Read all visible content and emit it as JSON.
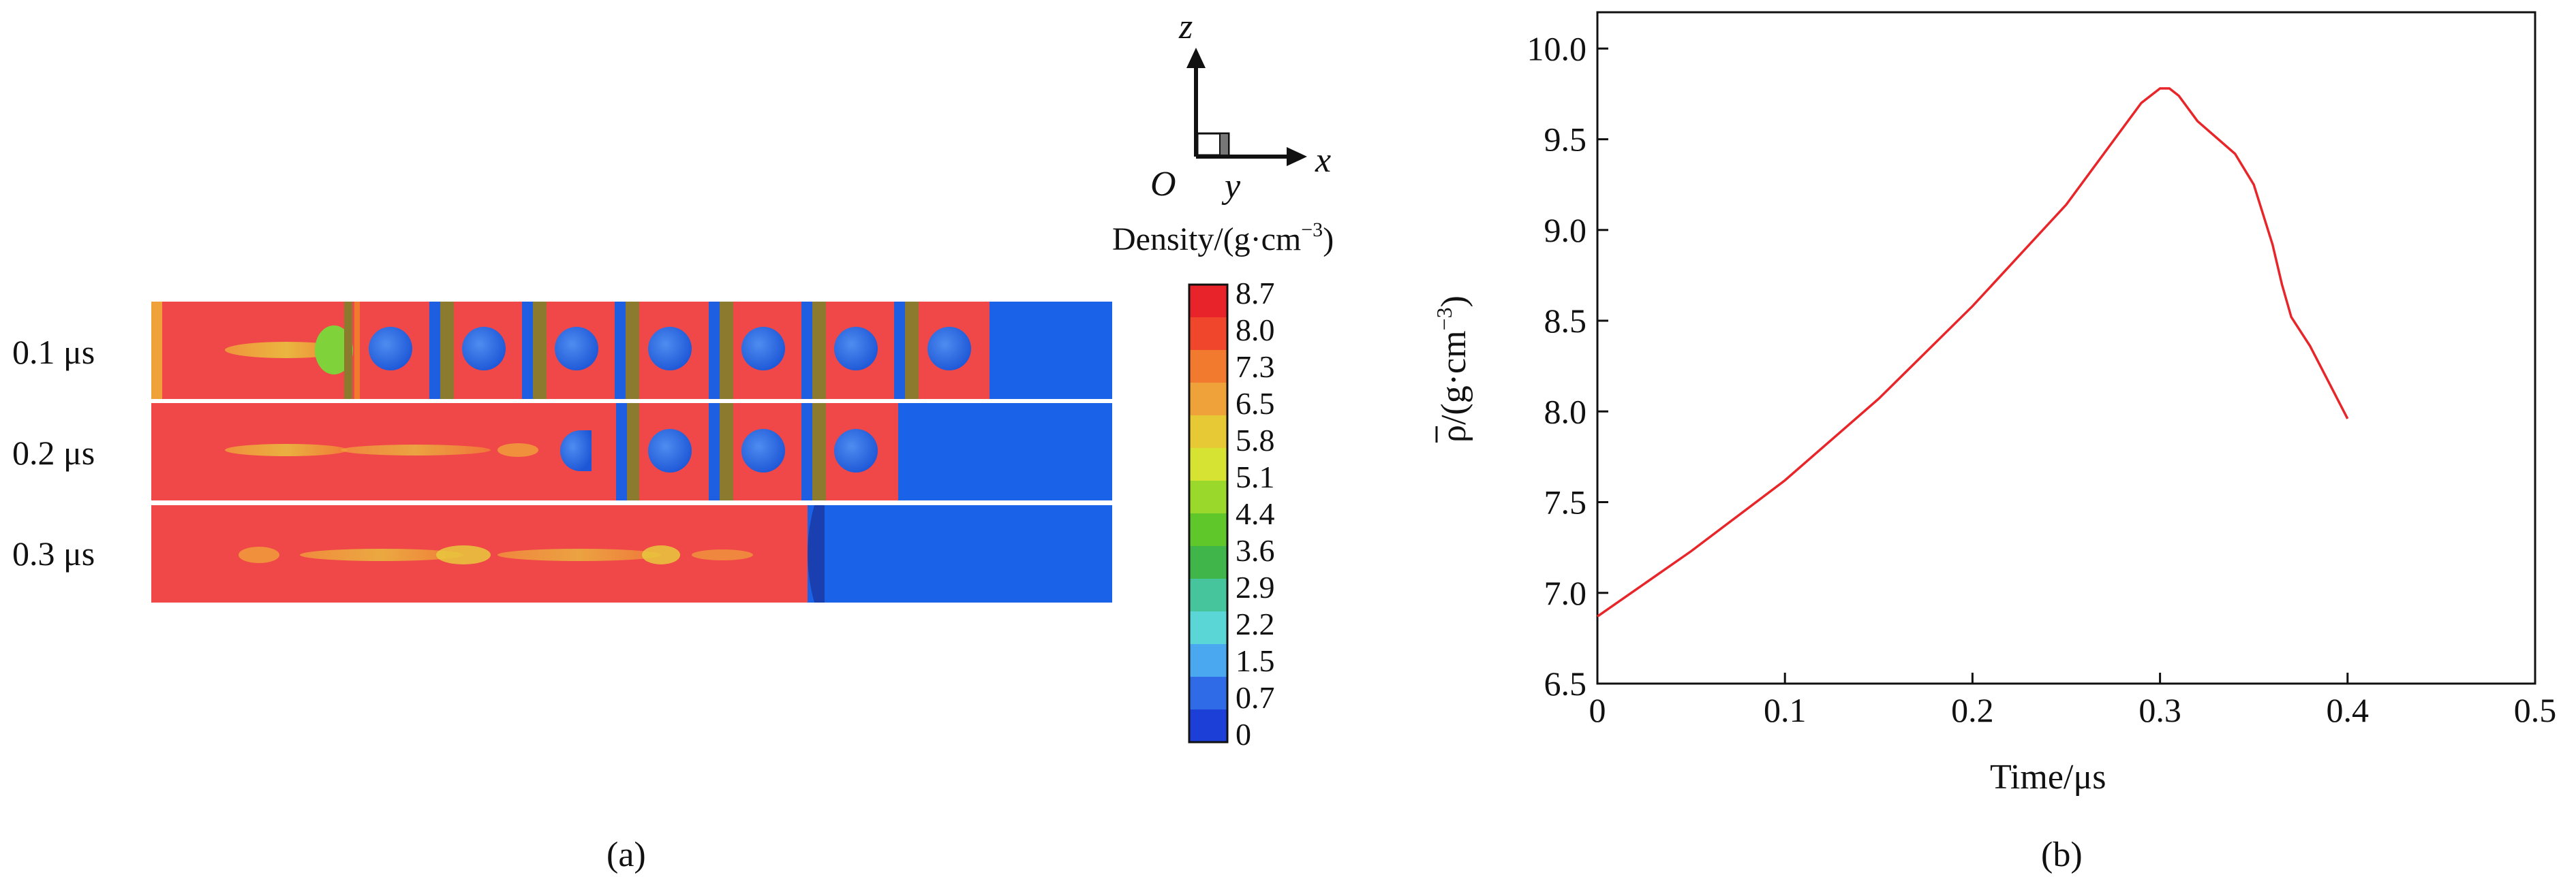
{
  "panel_a": {
    "caption": "(a)",
    "time_labels": [
      "0.1 μs",
      "0.2 μs",
      "0.3 μs"
    ],
    "axes_triad": {
      "z": "z",
      "x": "x",
      "y": "y",
      "origin": "O"
    },
    "colorbar": {
      "title_main": "Density/(g·cm",
      "title_exp": "−3",
      "title_close": ")",
      "ticks": [
        "8.7",
        "8.0",
        "7.3",
        "6.5",
        "5.8",
        "5.1",
        "4.4",
        "3.6",
        "2.9",
        "2.2",
        "1.5",
        "0.7",
        "0"
      ],
      "colors": [
        "#e8232a",
        "#f0472c",
        "#f27a2e",
        "#f0a23a",
        "#e7c935",
        "#d6e333",
        "#9bd82c",
        "#5fc72a",
        "#3fb54a",
        "#46c49b",
        "#5ad6d6",
        "#4aa8f0",
        "#2f6be6",
        "#1c3fd8"
      ]
    },
    "colors": {
      "material": "#f04848",
      "void": "#1a63e8",
      "particle": "#3a78e0",
      "plate_blue": "#1e5ee0",
      "plate_olive": "#8c7a2e",
      "mix": "#d6c64a"
    }
  },
  "panel_b": {
    "caption": "(b)",
    "chart_data": {
      "type": "line",
      "xlabel": "Time/μs",
      "ylabel_main": "ρ/(g·cm",
      "ylabel_exp": "−3",
      "ylabel_close": ")",
      "xlim": [
        0,
        0.5
      ],
      "ylim": [
        6.5,
        10.2
      ],
      "xticks": [
        0,
        0.1,
        0.2,
        0.3,
        0.4,
        0.5
      ],
      "xtick_labels": [
        "0",
        "0.1",
        "0.2",
        "0.3",
        "0.4",
        "0.5"
      ],
      "yticks": [
        6.5,
        7.0,
        7.5,
        8.0,
        8.5,
        9.0,
        9.5,
        10.0
      ],
      "ytick_labels": [
        "6.5",
        "7.0",
        "7.5",
        "8.0",
        "8.5",
        "9.0",
        "9.5",
        "10.0"
      ],
      "line_color": "#e8262a",
      "series": [
        {
          "x": [
            0,
            0.05,
            0.1,
            0.15,
            0.2,
            0.25,
            0.29,
            0.3,
            0.305,
            0.31,
            0.32,
            0.34,
            0.35,
            0.36,
            0.365,
            0.37,
            0.38,
            0.39,
            0.4
          ],
          "y": [
            6.87,
            7.23,
            7.62,
            8.07,
            8.58,
            9.14,
            9.7,
            9.78,
            9.78,
            9.74,
            9.6,
            9.42,
            9.25,
            8.92,
            8.7,
            8.52,
            8.36,
            8.16,
            7.96
          ]
        }
      ]
    }
  }
}
